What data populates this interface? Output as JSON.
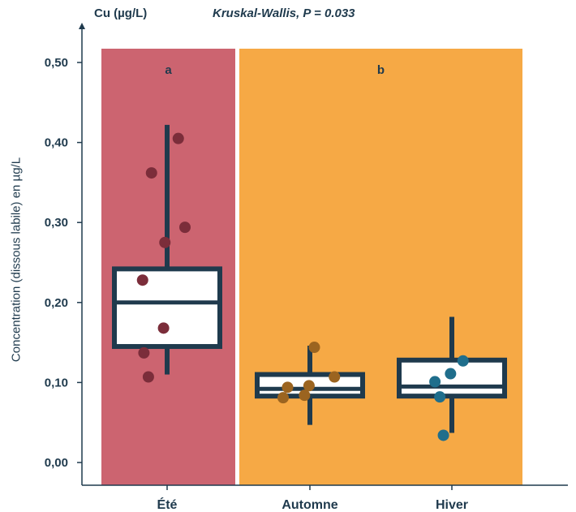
{
  "header": {
    "element": "Cu (µg/L)",
    "test": "Kruskal-Wallis,  P = 0.033"
  },
  "chart_data": {
    "type": "box",
    "ylabel": "Concentration (dissous labile) en µg/L",
    "ylim": [
      0,
      0.55
    ],
    "yticks": [
      0,
      0.1,
      0.2,
      0.3,
      0.4,
      0.5
    ],
    "ytick_labels": [
      "0,00",
      "0,10",
      "0,20",
      "0,30",
      "0,40",
      "0,50"
    ],
    "categories": [
      "Été",
      "Automne",
      "Hiver"
    ],
    "bands": [
      {
        "label": "a",
        "color": "#cc6470",
        "from": 0,
        "to": 0
      },
      {
        "label": "b",
        "color": "#f6a945",
        "from": 1,
        "to": 2
      }
    ],
    "boxes": [
      {
        "category": "Été",
        "whisker_low": 0.11,
        "q1": 0.145,
        "median": 0.2,
        "q3": 0.242,
        "whisker_high": 0.422,
        "points": [
          0.405,
          0.362,
          0.294,
          0.275,
          0.228,
          0.168,
          0.137,
          0.107
        ],
        "point_color": "#7b2d3a",
        "jitter": [
          0.25,
          -0.35,
          0.4,
          -0.05,
          -0.55,
          -0.08,
          -0.52,
          -0.42
        ]
      },
      {
        "category": "Automne",
        "whisker_low": 0.047,
        "q1": 0.083,
        "median": 0.092,
        "q3": 0.11,
        "whisker_high": 0.146,
        "points": [
          0.144,
          0.107,
          0.096,
          0.094,
          0.084,
          0.081
        ],
        "point_color": "#9b6420",
        "jitter": [
          0.1,
          0.55,
          -0.02,
          -0.5,
          -0.12,
          -0.6
        ]
      },
      {
        "category": "Hiver",
        "whisker_low": 0.037,
        "q1": 0.083,
        "median": 0.095,
        "q3": 0.128,
        "whisker_high": 0.182,
        "points": [
          0.127,
          0.111,
          0.101,
          0.082,
          0.034
        ],
        "point_color": "#1f6e8c",
        "jitter": [
          0.25,
          -0.03,
          -0.38,
          -0.27,
          -0.19
        ]
      }
    ],
    "grid": false
  }
}
